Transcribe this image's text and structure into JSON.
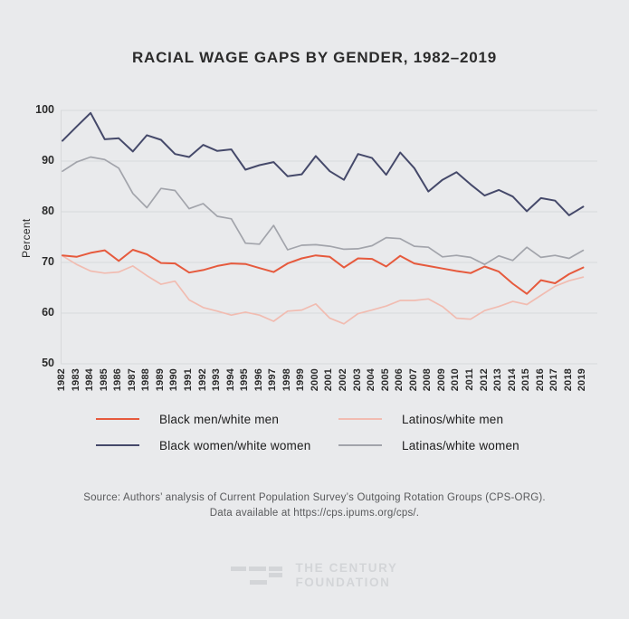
{
  "title": "RACIAL WAGE GAPS BY GENDER, 1982–2019",
  "y_axis": {
    "label": "Percent",
    "ticks": [
      100,
      90,
      80,
      70,
      60,
      50
    ]
  },
  "colors": {
    "background": "#e9eaec",
    "grid": "#d7d9db",
    "orange": "#e65a3d",
    "pink": "#f1bcb1",
    "navy": "#45496a",
    "gray": "#a2a4ab",
    "logo": "#d3d5d8"
  },
  "chart_data": {
    "type": "line",
    "title": "RACIAL WAGE GAPS BY GENDER, 1982–2019",
    "xlabel": "",
    "ylabel": "Percent",
    "ylim": [
      50,
      100
    ],
    "grid": true,
    "legend_position": "bottom",
    "x": [
      1982,
      1983,
      1984,
      1985,
      1986,
      1987,
      1988,
      1989,
      1990,
      1991,
      1992,
      1993,
      1994,
      1995,
      1996,
      1997,
      1998,
      1999,
      2000,
      2001,
      2002,
      2003,
      2004,
      2005,
      2006,
      2007,
      2008,
      2009,
      2010,
      2011,
      2012,
      2013,
      2014,
      2015,
      2016,
      2017,
      2018,
      2019
    ],
    "series": [
      {
        "name": "Latinos/white men",
        "color": "#f1bcb1",
        "width": 1.7,
        "values": [
          71.3,
          69.6,
          68.3,
          67.9,
          68.1,
          69.3,
          67.4,
          65.7,
          66.3,
          62.6,
          61.1,
          60.4,
          59.6,
          60.2,
          59.6,
          58.4,
          60.4,
          60.6,
          61.8,
          59.0,
          57.9,
          59.9,
          60.6,
          61.4,
          62.5,
          62.5,
          62.8,
          61.3,
          59.0,
          58.8,
          60.5,
          61.3,
          62.3,
          61.7,
          63.5,
          65.3,
          66.4,
          67.1
        ]
      },
      {
        "name": "Latinas/white women",
        "color": "#a2a4ab",
        "width": 1.7,
        "values": [
          88.0,
          89.8,
          90.8,
          90.3,
          88.6,
          83.6,
          80.8,
          84.6,
          84.2,
          80.6,
          81.6,
          79.1,
          78.6,
          73.8,
          73.6,
          77.3,
          72.5,
          73.4,
          73.5,
          73.2,
          72.6,
          72.7,
          73.3,
          74.9,
          74.7,
          73.2,
          73.0,
          71.1,
          71.4,
          71.0,
          69.6,
          71.3,
          70.4,
          73.0,
          71.0,
          71.4,
          70.8,
          72.4
        ]
      },
      {
        "name": "Black women/white women",
        "color": "#45496a",
        "width": 2,
        "values": [
          94.0,
          96.8,
          99.5,
          94.3,
          94.5,
          91.9,
          95.1,
          94.2,
          91.4,
          90.8,
          93.2,
          92.0,
          92.3,
          88.3,
          89.2,
          89.8,
          87.0,
          87.4,
          91.0,
          88.0,
          86.3,
          91.4,
          90.6,
          87.3,
          91.7,
          88.6,
          84.0,
          86.3,
          87.8,
          85.4,
          83.2,
          84.3,
          83.0,
          80.1,
          82.7,
          82.2,
          79.3,
          81.0
        ]
      },
      {
        "name": "Black men/white men",
        "color": "#e65a3d",
        "width": 2,
        "values": [
          71.4,
          71.1,
          71.9,
          72.4,
          70.3,
          72.5,
          71.6,
          69.9,
          69.8,
          68.0,
          68.5,
          69.3,
          69.8,
          69.7,
          68.9,
          68.1,
          69.8,
          70.8,
          71.4,
          71.1,
          69.0,
          70.8,
          70.7,
          69.2,
          71.3,
          69.8,
          69.3,
          68.8,
          68.3,
          67.9,
          69.2,
          68.2,
          65.8,
          63.8,
          66.5,
          65.9,
          67.7,
          69.0
        ]
      }
    ]
  },
  "legend": {
    "items": [
      {
        "label": "Black men/white men",
        "color": "#e65a3d"
      },
      {
        "label": "Latinos/white men",
        "color": "#f1bcb1"
      },
      {
        "label": "Black women/white women",
        "color": "#45496a"
      },
      {
        "label": "Latinas/white women",
        "color": "#a2a4ab"
      }
    ]
  },
  "source": {
    "line1": "Source:  Authors’ analysis of Current Population Survey’s Outgoing Rotation Groups (CPS-ORG).",
    "line2": "Data available at https://cps.ipums.org/cps/."
  },
  "logo": {
    "line1": "THE CENTURY",
    "line2": "FOUNDATION"
  }
}
